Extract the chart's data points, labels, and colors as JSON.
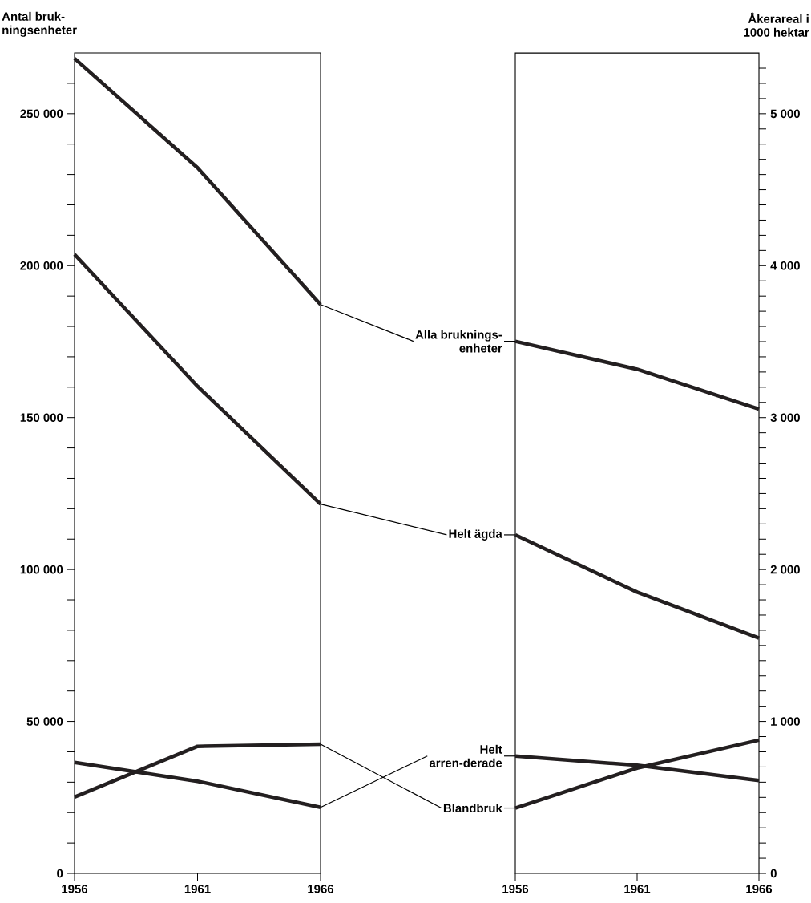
{
  "chart_data": [
    {
      "type": "line",
      "ylabel": "Antal bruk-ningsenheter",
      "x": [
        1956,
        1961,
        1966
      ],
      "xlim": [
        1956,
        1966
      ],
      "xticks": [
        1956,
        1961,
        1966
      ],
      "ylim": [
        0,
        270000
      ],
      "yticks": [
        {
          "value": 0,
          "label": "0"
        },
        {
          "value": 10000,
          "label": null
        },
        {
          "value": 20000,
          "label": null
        },
        {
          "value": 30000,
          "label": null
        },
        {
          "value": 40000,
          "label": null
        },
        {
          "value": 50000,
          "label": "50 000"
        },
        {
          "value": 60000,
          "label": null
        },
        {
          "value": 70000,
          "label": null
        },
        {
          "value": 80000,
          "label": null
        },
        {
          "value": 90000,
          "label": null
        },
        {
          "value": 100000,
          "label": "100 000"
        },
        {
          "value": 110000,
          "label": null
        },
        {
          "value": 120000,
          "label": null
        },
        {
          "value": 130000,
          "label": null
        },
        {
          "value": 140000,
          "label": null
        },
        {
          "value": 150000,
          "label": "150 000"
        },
        {
          "value": 160000,
          "label": null
        },
        {
          "value": 170000,
          "label": null
        },
        {
          "value": 180000,
          "label": null
        },
        {
          "value": 190000,
          "label": null
        },
        {
          "value": 200000,
          "label": "200 000"
        },
        {
          "value": 210000,
          "label": null
        },
        {
          "value": 220000,
          "label": null
        },
        {
          "value": 230000,
          "label": null
        },
        {
          "value": 240000,
          "label": null
        },
        {
          "value": 250000,
          "label": "250 000"
        },
        {
          "value": 260000,
          "label": null
        }
      ],
      "series": [
        {
          "name": "Alla bruknings-enheter",
          "color": "#231f20",
          "values": [
            268200,
            232200,
            187200
          ]
        },
        {
          "name": "Helt ägda",
          "color": "#231f20",
          "values": [
            203700,
            160300,
            121500
          ]
        },
        {
          "name": "Helt arren-derade",
          "color": "#231f20",
          "values": [
            36500,
            30300,
            21700
          ]
        },
        {
          "name": "Blandbruk",
          "color": "#231f20",
          "values": [
            25100,
            41800,
            42500
          ]
        }
      ]
    },
    {
      "type": "line",
      "ylabel": "Åkerareal i 1000 hektar",
      "x": [
        1956,
        1961,
        1966
      ],
      "xlim": [
        1956,
        1966
      ],
      "xticks": [
        1956,
        1961,
        1966
      ],
      "ylim": [
        0,
        5400
      ],
      "yticks": [
        {
          "value": 0,
          "label": "0"
        },
        {
          "value": 100,
          "label": null
        },
        {
          "value": 200,
          "label": null
        },
        {
          "value": 300,
          "label": null
        },
        {
          "value": 400,
          "label": null
        },
        {
          "value": 500,
          "label": null
        },
        {
          "value": 600,
          "label": null
        },
        {
          "value": 700,
          "label": null
        },
        {
          "value": 800,
          "label": null
        },
        {
          "value": 900,
          "label": null
        },
        {
          "value": 1000,
          "label": "1 000"
        },
        {
          "value": 1100,
          "label": null
        },
        {
          "value": 1200,
          "label": null
        },
        {
          "value": 1300,
          "label": null
        },
        {
          "value": 1400,
          "label": null
        },
        {
          "value": 1500,
          "label": null
        },
        {
          "value": 1600,
          "label": null
        },
        {
          "value": 1700,
          "label": null
        },
        {
          "value": 1800,
          "label": null
        },
        {
          "value": 1900,
          "label": null
        },
        {
          "value": 2000,
          "label": "2 000"
        },
        {
          "value": 2100,
          "label": null
        },
        {
          "value": 2200,
          "label": null
        },
        {
          "value": 2300,
          "label": null
        },
        {
          "value": 2400,
          "label": null
        },
        {
          "value": 2500,
          "label": null
        },
        {
          "value": 2600,
          "label": null
        },
        {
          "value": 2700,
          "label": null
        },
        {
          "value": 2800,
          "label": null
        },
        {
          "value": 2900,
          "label": null
        },
        {
          "value": 3000,
          "label": "3 000"
        },
        {
          "value": 3100,
          "label": null
        },
        {
          "value": 3200,
          "label": null
        },
        {
          "value": 3300,
          "label": null
        },
        {
          "value": 3400,
          "label": null
        },
        {
          "value": 3500,
          "label": null
        },
        {
          "value": 3600,
          "label": null
        },
        {
          "value": 3700,
          "label": null
        },
        {
          "value": 3800,
          "label": null
        },
        {
          "value": 3900,
          "label": null
        },
        {
          "value": 4000,
          "label": "4 000"
        },
        {
          "value": 4100,
          "label": null
        },
        {
          "value": 4200,
          "label": null
        },
        {
          "value": 4300,
          "label": null
        },
        {
          "value": 4400,
          "label": null
        },
        {
          "value": 4500,
          "label": null
        },
        {
          "value": 4600,
          "label": null
        },
        {
          "value": 4700,
          "label": null
        },
        {
          "value": 4800,
          "label": null
        },
        {
          "value": 4900,
          "label": null
        },
        {
          "value": 5000,
          "label": "5 000"
        },
        {
          "value": 5100,
          "label": null
        },
        {
          "value": 5200,
          "label": null
        },
        {
          "value": 5300,
          "label": null
        }
      ],
      "series": [
        {
          "color": "#231f20",
          "values": [
            3502,
            3318,
            3056
          ]
        },
        {
          "color": "#231f20",
          "values": [
            2228,
            1851,
            1549
          ]
        },
        {
          "color": "#231f20",
          "values": [
            772,
            711,
            611
          ]
        },
        {
          "color": "#231f20",
          "values": [
            430,
            693,
            877
          ]
        }
      ]
    }
  ]
}
